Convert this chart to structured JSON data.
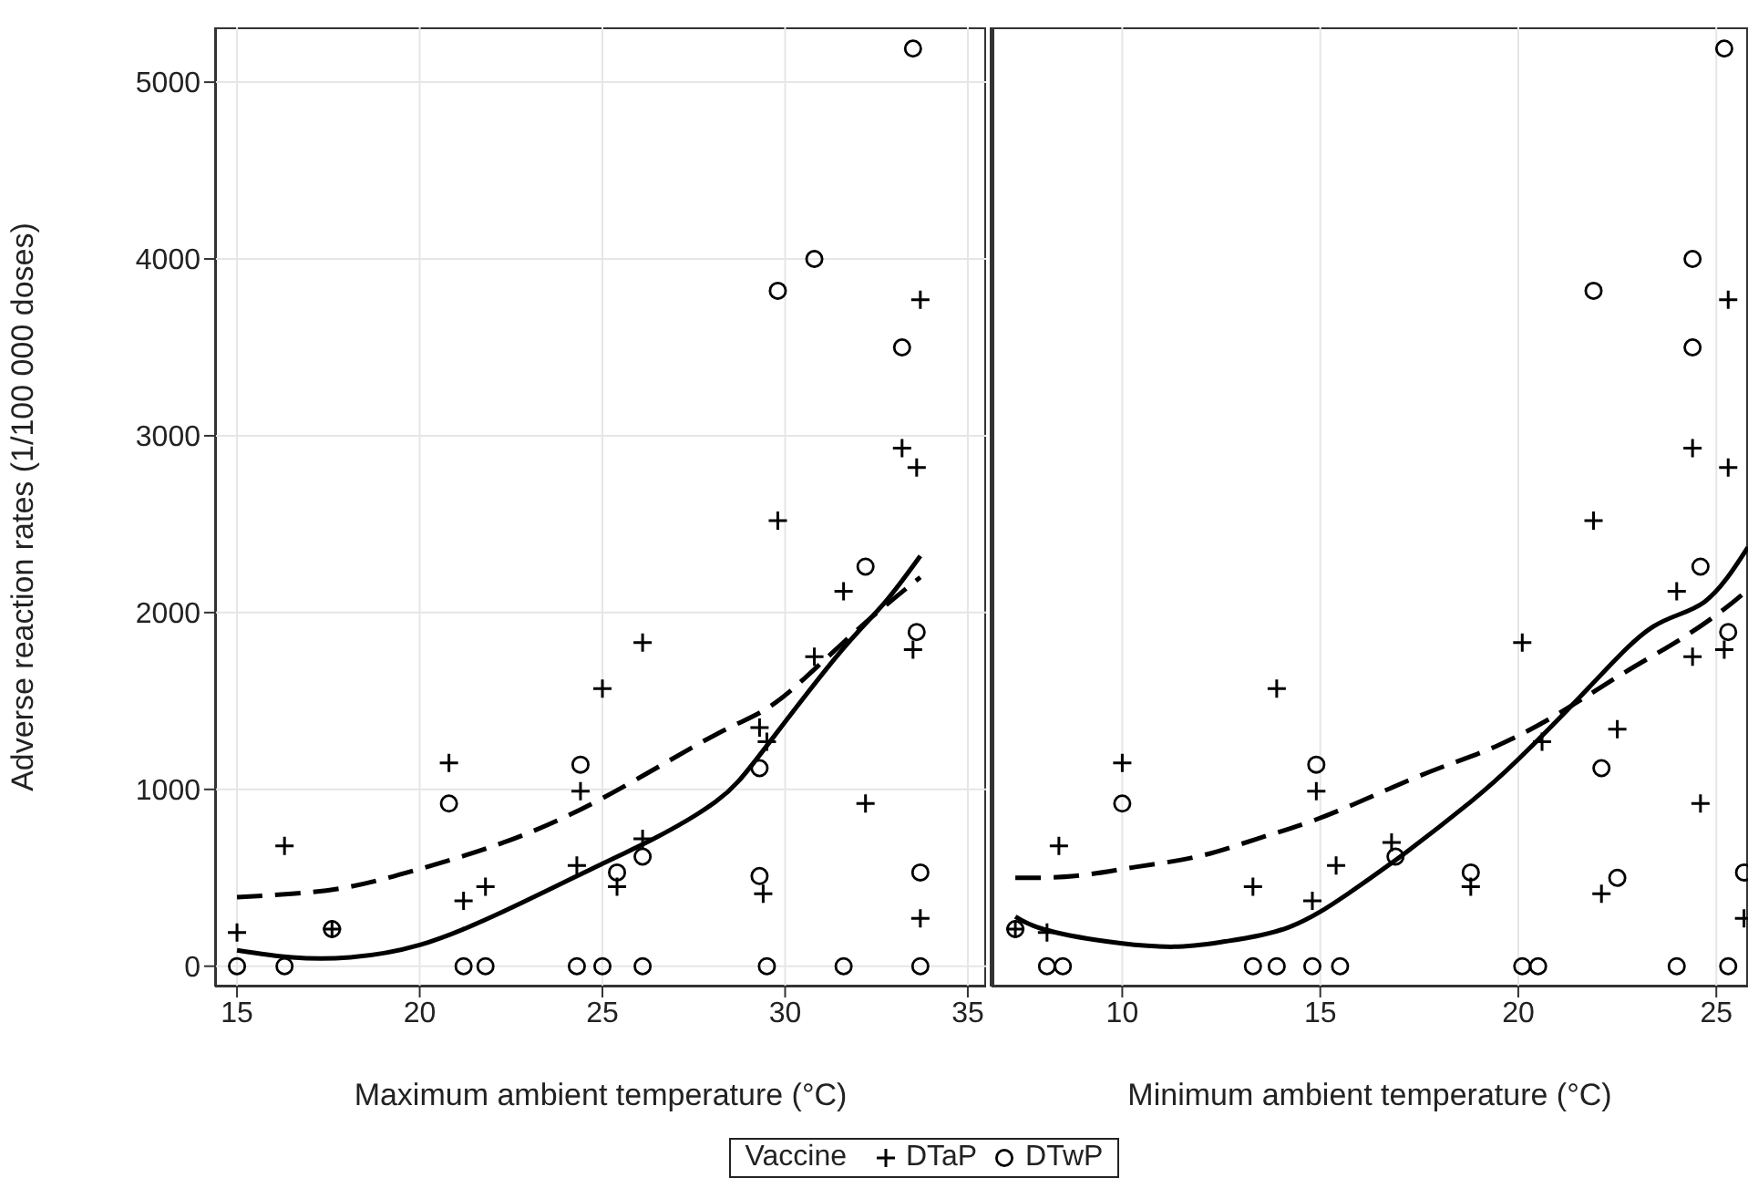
{
  "chart_data": [
    {
      "type": "scatter",
      "xlabel": "Maximum ambient temperature (°C)",
      "ylabel": "Adverse reaction rates (1/100 000 doses)",
      "legend_title": "Vaccine",
      "legend": "bottom",
      "grid": true,
      "xlim": [
        14.4,
        35.5
      ],
      "xticks": [
        15,
        20,
        25,
        30,
        35
      ],
      "ylim": [
        -115,
        5310
      ],
      "yticks": [
        0,
        1000,
        2000,
        3000,
        4000,
        5000
      ],
      "series": [
        {
          "name": "DTaP",
          "color": "#000000",
          "marker": "cross",
          "x": [
            15.0,
            16.3,
            17.6,
            20.8,
            21.2,
            21.8,
            24.3,
            24.4,
            25.0,
            25.4,
            26.1,
            26.1,
            29.3,
            29.5,
            29.4,
            30.8,
            32.2,
            33.5,
            33.7,
            29.8,
            31.6,
            33.2,
            33.6,
            33.7
          ],
          "values": [
            190,
            680,
            210,
            1150,
            370,
            450,
            570,
            990,
            1570,
            450,
            1830,
            720,
            1350,
            1270,
            410,
            1750,
            920,
            1790,
            270,
            2520,
            2120,
            2930,
            2820,
            3770
          ]
        },
        {
          "name": "DTwP",
          "color": "#000000",
          "marker": "circle",
          "x": [
            15.0,
            16.3,
            21.2,
            21.8,
            24.3,
            25.0,
            26.1,
            29.5,
            31.6,
            33.7,
            17.6,
            20.8,
            24.4,
            25.4,
            26.1,
            29.3,
            29.3,
            33.7,
            33.6,
            29.8,
            30.8,
            33.2,
            33.5,
            32.2
          ],
          "values": [
            0,
            0,
            0,
            0,
            0,
            0,
            0,
            0,
            0,
            0,
            210,
            920,
            1140,
            530,
            620,
            510,
            1120,
            530,
            1890,
            3820,
            4000,
            3500,
            5190,
            2260
          ]
        },
        {
          "type": "line",
          "color": "#000000",
          "line_style": "solid",
          "x": [
            15.0,
            16.5,
            18.1,
            20.0,
            22.3,
            25.0,
            26.4,
            28.1,
            29.4,
            31.4,
            32.7,
            33.7
          ],
          "values": [
            90,
            50,
            50,
            120,
            310,
            580,
            720,
            930,
            1220,
            1750,
            2050,
            2320
          ]
        },
        {
          "type": "line",
          "color": "#000000",
          "line_style": "dashed",
          "x": [
            15.0,
            16.5,
            18.1,
            20.0,
            22.3,
            25.0,
            28.1,
            29.8,
            31.8,
            33.7
          ],
          "values": [
            390,
            410,
            450,
            550,
            700,
            950,
            1310,
            1500,
            1870,
            2200
          ]
        }
      ]
    },
    {
      "type": "scatter",
      "xlabel": "Minimum ambient temperature (°C)",
      "grid": true,
      "tick_labels": "x",
      "xlim": [
        6.7,
        25.8
      ],
      "xticks": [
        10,
        15,
        20,
        25
      ],
      "ylim": [
        -115,
        5310
      ],
      "yticks": [
        0,
        1000,
        2000,
        3000,
        4000,
        5000
      ],
      "series": [
        {
          "color": "#000000",
          "marker": "cross",
          "x": [
            7.3,
            8.1,
            8.4,
            10.0,
            13.3,
            13.9,
            14.8,
            14.9,
            15.4,
            16.8,
            18.8,
            20.1,
            20.6,
            22.1,
            22.5,
            24.4,
            24.6,
            25.2,
            25.7,
            21.9,
            24.0,
            24.4,
            25.3,
            25.3
          ],
          "values": [
            210,
            190,
            680,
            1150,
            450,
            1570,
            370,
            990,
            570,
            700,
            450,
            1830,
            1270,
            410,
            1340,
            1750,
            920,
            1790,
            270,
            2520,
            2120,
            2930,
            2820,
            3770
          ]
        },
        {
          "color": "#000000",
          "marker": "circle",
          "x": [
            7.3,
            8.1,
            8.5,
            13.3,
            13.9,
            14.8,
            15.5,
            20.1,
            20.5,
            24.0,
            25.3,
            10.0,
            14.9,
            16.9,
            18.8,
            22.1,
            22.5,
            25.3,
            25.7,
            21.9,
            24.4,
            24.4,
            25.2,
            24.6
          ],
          "values": [
            210,
            0,
            0,
            0,
            0,
            0,
            0,
            0,
            0,
            0,
            0,
            920,
            1140,
            620,
            530,
            1120,
            500,
            1890,
            530,
            3820,
            4000,
            3500,
            5190,
            2260
          ]
        },
        {
          "type": "line",
          "color": "#000000",
          "line_style": "solid",
          "x": [
            7.3,
            8.0,
            9.6,
            11.3,
            12.6,
            14.2,
            15.7,
            17.2,
            18.8,
            20.0,
            21.8,
            23.4,
            24.7,
            25.8
          ],
          "values": [
            280,
            210,
            140,
            110,
            140,
            220,
            410,
            650,
            930,
            1170,
            1580,
            1920,
            2060,
            2370
          ]
        },
        {
          "type": "line",
          "color": "#000000",
          "line_style": "dashed",
          "x": [
            7.3,
            8.8,
            10.3,
            11.9,
            13.4,
            14.9,
            16.5,
            18.0,
            19.5,
            21.1,
            22.6,
            24.1,
            25.2,
            25.8
          ],
          "values": [
            500,
            510,
            560,
            620,
            720,
            830,
            980,
            1120,
            1250,
            1440,
            1650,
            1850,
            2020,
            2130
          ]
        }
      ]
    }
  ]
}
